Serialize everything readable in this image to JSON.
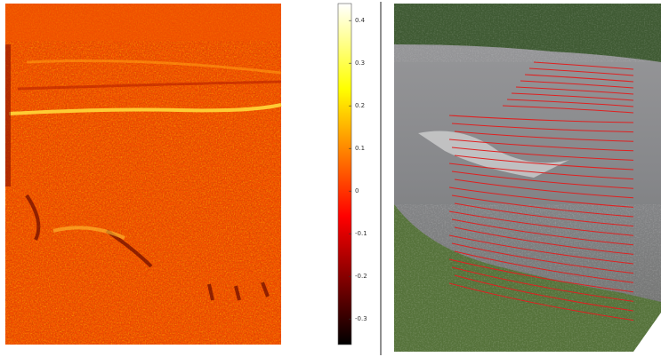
{
  "chart_data": {
    "type": "heatmap",
    "colormap": "hot",
    "clim": [
      -0.36,
      0.44
    ],
    "cticks": [
      0.4,
      0.3,
      0.2,
      0.1,
      0,
      -0.1,
      -0.2,
      -0.3
    ]
  }
}
